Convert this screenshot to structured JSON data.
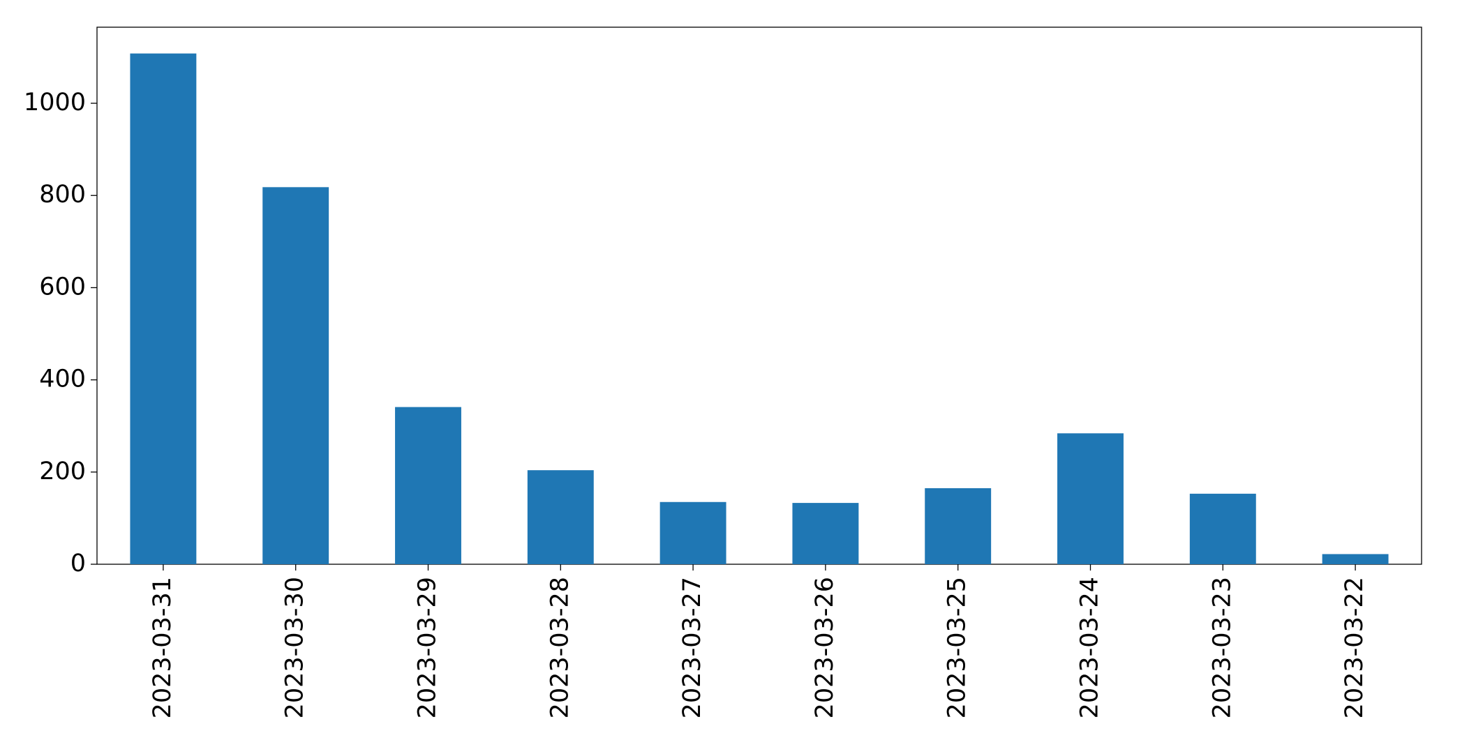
{
  "chart_data": {
    "type": "bar",
    "categories": [
      "2023-03-31",
      "2023-03-30",
      "2023-03-29",
      "2023-03-28",
      "2023-03-27",
      "2023-03-26",
      "2023-03-25",
      "2023-03-24",
      "2023-03-23",
      "2023-03-22"
    ],
    "values": [
      1108,
      818,
      341,
      204,
      135,
      133,
      165,
      284,
      153,
      22
    ],
    "color": "#1f77b4",
    "ylim": [
      0,
      1165
    ],
    "yticks": [
      0,
      200,
      400,
      600,
      800,
      1000
    ],
    "grid": false
  }
}
